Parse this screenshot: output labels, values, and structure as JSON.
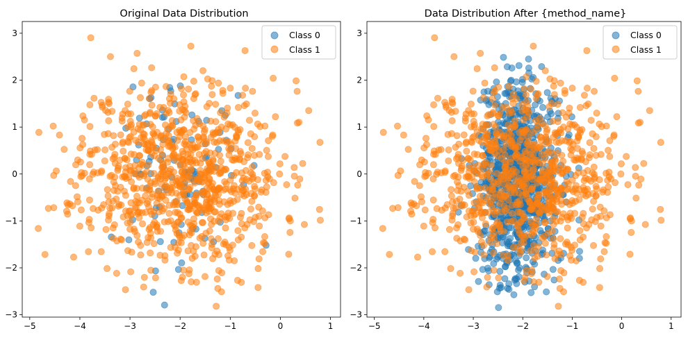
{
  "chart_data": [
    {
      "type": "scatter",
      "title": "Original Data Distribution",
      "xlabel": "",
      "ylabel": "",
      "xlim": [
        -5.15,
        1.2
      ],
      "ylim": [
        -3.05,
        3.25
      ],
      "xticks": [
        -5,
        -4,
        -3,
        -2,
        -1,
        0,
        1
      ],
      "yticks": [
        -3,
        -2,
        -1,
        0,
        1,
        2,
        3
      ],
      "grid": false,
      "legend_position": "top-right",
      "series": [
        {
          "name": "Class 0",
          "color": "#1f77b4",
          "alpha": 0.55,
          "count": 100,
          "center": [
            -2.0,
            0.0
          ],
          "spread": [
            0.55,
            1.0
          ],
          "seed": 7
        },
        {
          "name": "Class 1",
          "color": "#ff7f0e",
          "alpha": 0.55,
          "count": 900,
          "center": [
            -2.0,
            0.0
          ],
          "spread": [
            1.0,
            1.0
          ],
          "seed": 11
        }
      ]
    },
    {
      "type": "scatter",
      "title": "Data Distribution After {method_name}",
      "xlabel": "",
      "ylabel": "",
      "xlim": [
        -5.15,
        1.2
      ],
      "ylim": [
        -3.05,
        3.25
      ],
      "xticks": [
        -5,
        -4,
        -3,
        -2,
        -1,
        0,
        1
      ],
      "yticks": [
        -3,
        -2,
        -1,
        0,
        1,
        2,
        3
      ],
      "grid": false,
      "legend_position": "top-right",
      "series": [
        {
          "name": "Class 0",
          "color": "#1f77b4",
          "alpha": 0.55,
          "count": 900,
          "center": [
            -2.1,
            -0.2
          ],
          "spread": [
            0.4,
            1.05
          ],
          "seed": 7
        },
        {
          "name": "Class 1",
          "color": "#ff7f0e",
          "alpha": 0.55,
          "count": 900,
          "center": [
            -2.0,
            0.0
          ],
          "spread": [
            1.0,
            1.0
          ],
          "seed": 11
        }
      ]
    }
  ]
}
